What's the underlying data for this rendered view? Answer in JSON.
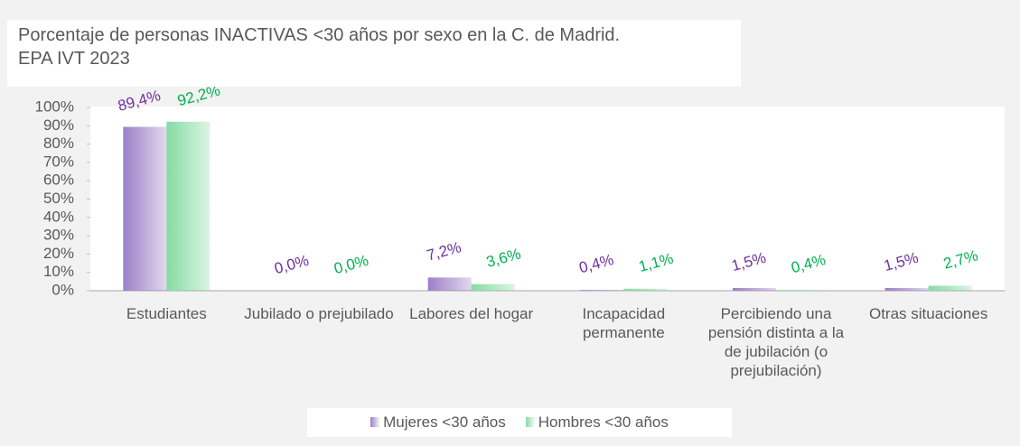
{
  "chart_data": {
    "type": "bar",
    "title": [
      "Porcentaje de personas INACTIVAS <30 años por sexo en la C. de Madrid.",
      "EPA IVT 2023"
    ],
    "categories": [
      "Estudiantes",
      "Jubilado o prejubilado",
      "Labores del hogar",
      "Incapacidad permanente",
      "Percibiendo una pensión distinta a la de jubilación (o prejubilación)",
      "Otras situaciones"
    ],
    "series": [
      {
        "name": "Mujeres <30 años",
        "color": "#9b7fc7",
        "label_color": "#7030a0",
        "values": [
          89.4,
          0.0,
          7.2,
          0.4,
          1.5,
          1.5
        ],
        "value_labels": [
          "89,4%",
          "0,0%",
          "7,2%",
          "0,4%",
          "1,5%",
          "1,5%"
        ]
      },
      {
        "name": "Hombres <30 años",
        "color": "#86dba3",
        "label_color": "#00b050",
        "values": [
          92.2,
          0.0,
          3.6,
          1.1,
          0.4,
          2.7
        ],
        "value_labels": [
          "92,2%",
          "0,0%",
          "3,6%",
          "1,1%",
          "0,4%",
          "2,7%"
        ]
      }
    ],
    "ylim": [
      0,
      100
    ],
    "yticks": [
      {
        "value": 0,
        "label": "0%"
      },
      {
        "value": 10,
        "label": "10%"
      },
      {
        "value": 20,
        "label": "20%"
      },
      {
        "value": 30,
        "label": "30%"
      },
      {
        "value": 40,
        "label": "40%"
      },
      {
        "value": 50,
        "label": "50%"
      },
      {
        "value": 60,
        "label": "60%"
      },
      {
        "value": 70,
        "label": "70%"
      },
      {
        "value": 80,
        "label": "80%"
      },
      {
        "value": 90,
        "label": "90%"
      },
      {
        "value": 100,
        "label": "100%"
      }
    ],
    "legend": "bottom"
  }
}
